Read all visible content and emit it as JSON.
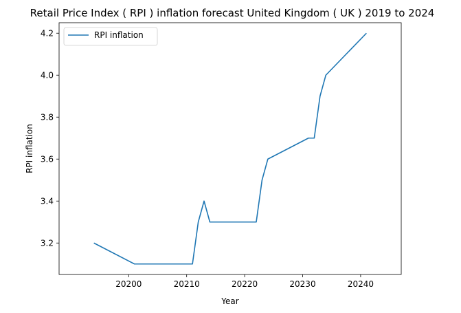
{
  "chart_data": {
    "type": "line",
    "title": "Retail Price Index ( RPI ) inflation forecast United Kingdom ( UK ) 2019 to 2024",
    "xlabel": "Year",
    "ylabel": "RPI inflation",
    "xlim": [
      20188,
      20247
    ],
    "ylim": [
      3.05,
      4.25
    ],
    "x_ticks": [
      20200,
      20210,
      20220,
      20230,
      20240
    ],
    "y_ticks": [
      3.2,
      3.4,
      3.6,
      3.8,
      4.0,
      4.2
    ],
    "legend_position": "top-left",
    "grid": false,
    "series": [
      {
        "name": "RPI inflation",
        "color": "#1f77b4",
        "x": [
          20194,
          20201,
          20202,
          20203,
          20204,
          20211,
          20212,
          20213,
          20214,
          20221,
          20222,
          20223,
          20224,
          20231,
          20232,
          20233,
          20234,
          20241
        ],
        "y": [
          3.2,
          3.1,
          3.1,
          3.1,
          3.1,
          3.1,
          3.3,
          3.4,
          3.3,
          3.3,
          3.3,
          3.5,
          3.6,
          3.7,
          3.7,
          3.9,
          4.0,
          4.2
        ]
      }
    ]
  }
}
